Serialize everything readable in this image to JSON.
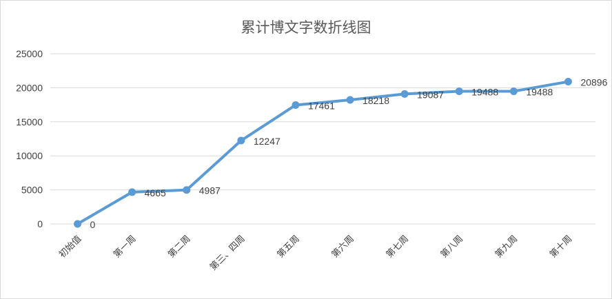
{
  "chart_data": {
    "type": "line",
    "title": "累计博文字数折线图",
    "xlabel": "",
    "ylabel": "",
    "categories": [
      "初始值",
      "第一周",
      "第二周",
      "第三、四周",
      "第五周",
      "第六周",
      "第七周",
      "第八周",
      "第九周",
      "第十周"
    ],
    "series": [
      {
        "values": [
          0,
          4665,
          4987,
          12247,
          17461,
          18218,
          19087,
          19488,
          19488,
          20896
        ]
      }
    ],
    "data_labels": [
      "0",
      "4665",
      "4987",
      "12247",
      "17461",
      "18218",
      "19087",
      "19488",
      "19488",
      "20896"
    ],
    "y_ticks": [
      0,
      5000,
      10000,
      15000,
      20000,
      25000
    ],
    "ylim": [
      0,
      25000
    ],
    "grid": true,
    "legend": "none",
    "colors": {
      "series": "#5b9bd5",
      "grid": "#d9d9d9",
      "text": "#404040",
      "title": "#595959"
    }
  }
}
